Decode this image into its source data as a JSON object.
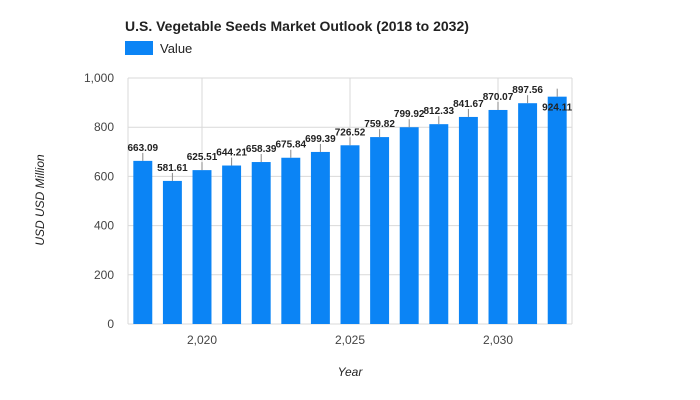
{
  "chart_data": {
    "type": "bar",
    "title": "U.S. Vegetable Seeds Market Outlook (2018 to 2032)",
    "xlabel": "Year",
    "ylabel": "USD USD Million",
    "x": [
      2018,
      2019,
      2020,
      2021,
      2022,
      2023,
      2024,
      2025,
      2026,
      2027,
      2028,
      2029,
      2030,
      2031,
      2032
    ],
    "series": [
      {
        "name": "Value",
        "color": "#0b84f5",
        "values": [
          663.09,
          581.61,
          625.51,
          644.21,
          658.39,
          675.84,
          699.39,
          726.52,
          759.82,
          799.92,
          812.33,
          841.67,
          870.07,
          897.56,
          924.11
        ],
        "labels": [
          "663.09",
          "581.61",
          "625.51",
          "644.21",
          "658.39",
          "675.84",
          "699.39",
          "726.52",
          "759.82",
          "799.92",
          "812.33",
          "841.67",
          "870.07",
          "897.56",
          "924.11"
        ]
      }
    ],
    "ylim": [
      0,
      1000
    ],
    "yticks": [
      0,
      200,
      400,
      600,
      800,
      1000
    ],
    "ytick_labels": [
      "0",
      "200",
      "400",
      "600",
      "800",
      "1,000"
    ],
    "xticks": [
      2020,
      2025,
      2030
    ],
    "xtick_labels": [
      "2,020",
      "2,025",
      "2,030"
    ],
    "grid": true,
    "legend": "top-left"
  }
}
